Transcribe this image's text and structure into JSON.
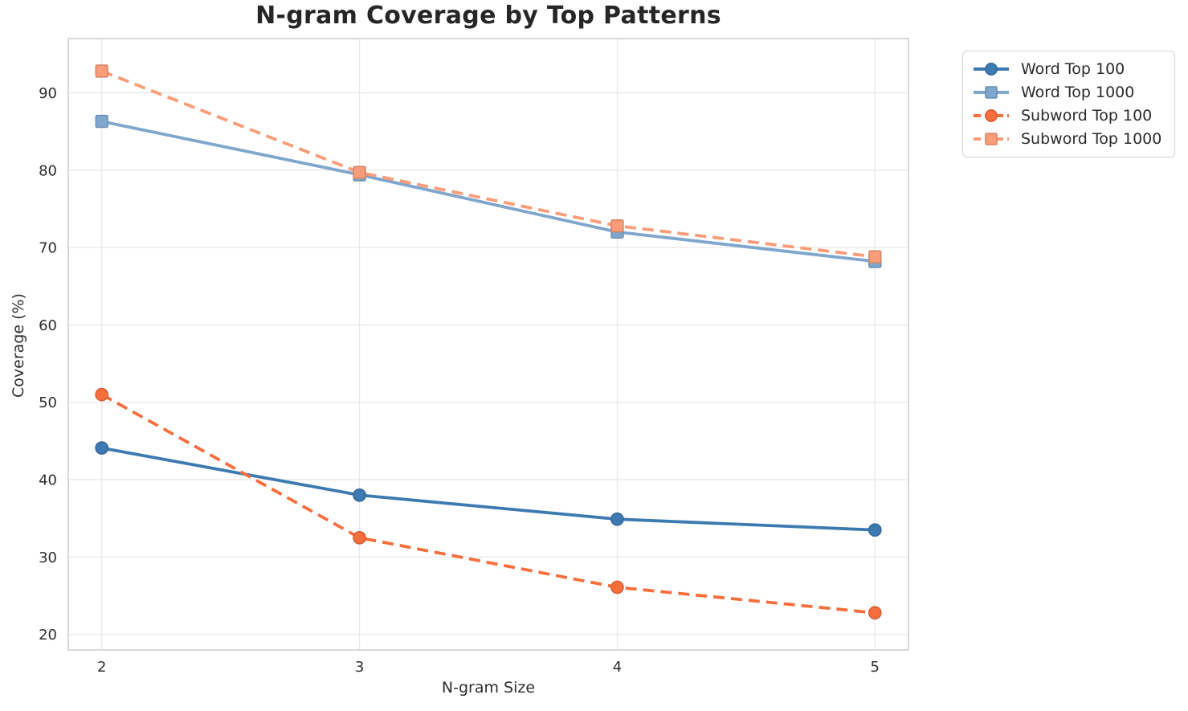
{
  "chart_data": {
    "type": "line",
    "title": "N-gram Coverage by Top Patterns",
    "xlabel": "N-gram Size",
    "ylabel": "Coverage (%)",
    "x": [
      2,
      3,
      4,
      5
    ],
    "xticks": [
      "2",
      "3",
      "4",
      "5"
    ],
    "yticks": [
      20,
      30,
      40,
      50,
      60,
      70,
      80,
      90
    ],
    "xlim": [
      1.87,
      5.13
    ],
    "ylim": [
      18,
      97
    ],
    "grid": true,
    "legend_position": "top-right outside plot",
    "series": [
      {
        "name": "Word Top 100",
        "values": [
          44.1,
          38.0,
          34.9,
          33.5
        ],
        "color": "#3d7ab1",
        "marker": "circle",
        "dash": false
      },
      {
        "name": "Word Top 1000",
        "values": [
          86.3,
          79.4,
          72.0,
          68.2
        ],
        "color": "#7fa6cd",
        "marker": "square",
        "dash": false
      },
      {
        "name": "Subword Top 100",
        "values": [
          51.0,
          32.5,
          26.1,
          22.8
        ],
        "color": "#f76e3d",
        "marker": "circle",
        "dash": true
      },
      {
        "name": "Subword Top 1000",
        "values": [
          92.8,
          79.7,
          72.8,
          68.8
        ],
        "color": "#fa9c77",
        "marker": "square",
        "dash": true
      }
    ],
    "colors": {
      "grid": "#e8e8e8",
      "spine": "#cccccc",
      "tick_label": "#2e2e2e",
      "title": "#262626",
      "background": "#ffffff"
    }
  }
}
